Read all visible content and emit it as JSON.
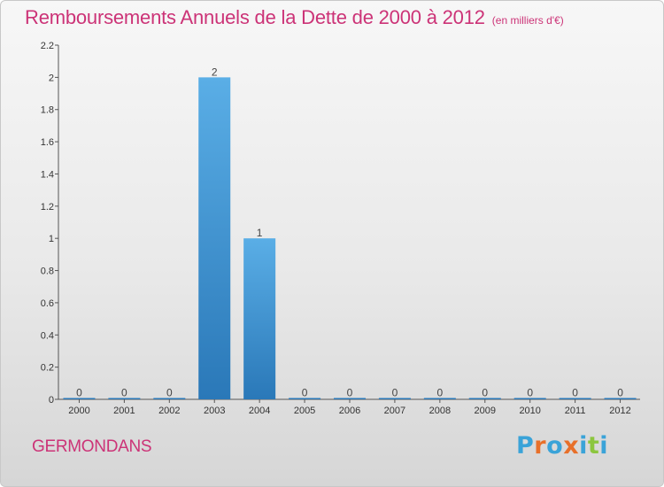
{
  "title": "Remboursements Annuels de la Dette de 2000 à 2012",
  "subtitle": "(en milliers d'€)",
  "commune": "GERMONDANS",
  "logo": {
    "text": "Proxiti",
    "colors": [
      "#3aa3d8",
      "#e8702a",
      "#3aa3d8",
      "#e8702a",
      "#3aa3d8",
      "#8cc63f",
      "#3aa3d8"
    ]
  },
  "colors": {
    "accent": "#cc3377",
    "bar_top": "#5aaee6",
    "bar_bottom": "#2a78b8"
  },
  "chart_data": {
    "type": "bar",
    "categories": [
      "2000",
      "2001",
      "2002",
      "2003",
      "2004",
      "2005",
      "2006",
      "2007",
      "2008",
      "2009",
      "2010",
      "2011",
      "2012"
    ],
    "values": [
      0,
      0,
      0,
      2,
      1,
      0,
      0,
      0,
      0,
      0,
      0,
      0,
      0
    ],
    "data_labels": [
      "0",
      "0",
      "0",
      "2",
      "1",
      "0",
      "0",
      "0",
      "0",
      "0",
      "0",
      "0",
      "0"
    ],
    "title": "Remboursements Annuels de la Dette de 2000 à 2012",
    "xlabel": "",
    "ylabel": "",
    "ylim": [
      0,
      2.2
    ],
    "yticks": [
      0,
      0.2,
      0.4,
      0.6,
      0.8,
      1,
      1.2,
      1.4,
      1.6,
      1.8,
      2,
      2.2
    ],
    "ytick_labels": [
      "0",
      "0.2",
      "0.4",
      "0.6",
      "0.8",
      "1",
      "1.2",
      "1.4",
      "1.6",
      "1.8",
      "2",
      "2.2"
    ],
    "grid": false,
    "legend": "none"
  }
}
